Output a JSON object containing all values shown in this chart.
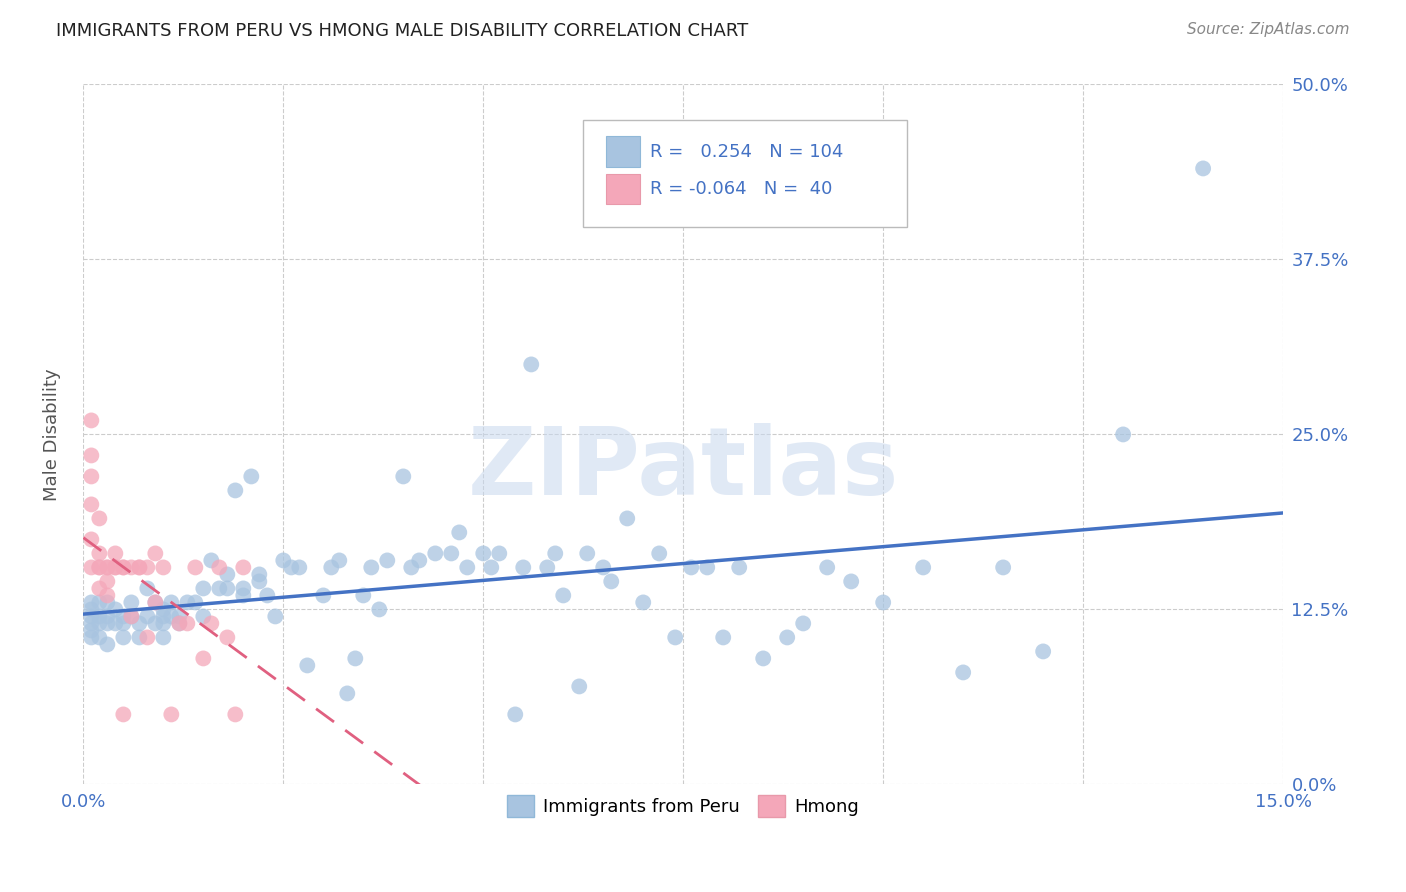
{
  "title": "IMMIGRANTS FROM PERU VS HMONG MALE DISABILITY CORRELATION CHART",
  "source": "Source: ZipAtlas.com",
  "xlim": [
    0.0,
    0.15
  ],
  "ylim": [
    0.0,
    0.5
  ],
  "ylabel": "Male Disability",
  "legend_labels": [
    "Immigrants from Peru",
    "Hmong"
  ],
  "peru_color": "#a8c4e0",
  "hmong_color": "#f4a7b9",
  "peru_line_color": "#4472c4",
  "hmong_line_color": "#e06080",
  "peru_R": 0.254,
  "peru_N": 104,
  "hmong_R": -0.064,
  "hmong_N": 40,
  "watermark": "ZIPatlas",
  "x_tick_positions": [
    0.0,
    0.025,
    0.05,
    0.075,
    0.1,
    0.125,
    0.15
  ],
  "x_tick_labels": [
    "0.0%",
    "",
    "",
    "",
    "",
    "",
    "15.0%"
  ],
  "y_ticks": [
    0.0,
    0.125,
    0.25,
    0.375,
    0.5
  ],
  "y_tick_labels": [
    "0.0%",
    "12.5%",
    "25.0%",
    "37.5%",
    "50.0%"
  ],
  "peru_x": [
    0.001,
    0.001,
    0.001,
    0.001,
    0.001,
    0.001,
    0.002,
    0.002,
    0.002,
    0.002,
    0.003,
    0.003,
    0.003,
    0.003,
    0.004,
    0.004,
    0.005,
    0.005,
    0.005,
    0.006,
    0.006,
    0.007,
    0.007,
    0.008,
    0.008,
    0.009,
    0.009,
    0.01,
    0.01,
    0.01,
    0.01,
    0.011,
    0.011,
    0.012,
    0.012,
    0.013,
    0.014,
    0.015,
    0.015,
    0.016,
    0.017,
    0.018,
    0.018,
    0.019,
    0.02,
    0.02,
    0.021,
    0.022,
    0.022,
    0.023,
    0.024,
    0.025,
    0.026,
    0.027,
    0.028,
    0.03,
    0.031,
    0.032,
    0.033,
    0.034,
    0.035,
    0.036,
    0.037,
    0.038,
    0.04,
    0.041,
    0.042,
    0.044,
    0.046,
    0.047,
    0.048,
    0.05,
    0.051,
    0.052,
    0.054,
    0.055,
    0.056,
    0.058,
    0.059,
    0.06,
    0.062,
    0.063,
    0.065,
    0.066,
    0.068,
    0.07,
    0.072,
    0.074,
    0.076,
    0.078,
    0.08,
    0.082,
    0.085,
    0.088,
    0.09,
    0.093,
    0.096,
    0.1,
    0.105,
    0.11,
    0.115,
    0.12,
    0.13,
    0.14
  ],
  "peru_y": [
    0.125,
    0.13,
    0.12,
    0.115,
    0.105,
    0.11,
    0.12,
    0.115,
    0.105,
    0.13,
    0.13,
    0.12,
    0.115,
    0.1,
    0.125,
    0.115,
    0.12,
    0.115,
    0.105,
    0.13,
    0.12,
    0.115,
    0.105,
    0.14,
    0.12,
    0.13,
    0.115,
    0.125,
    0.12,
    0.115,
    0.105,
    0.13,
    0.12,
    0.12,
    0.115,
    0.13,
    0.13,
    0.14,
    0.12,
    0.16,
    0.14,
    0.15,
    0.14,
    0.21,
    0.14,
    0.135,
    0.22,
    0.15,
    0.145,
    0.135,
    0.12,
    0.16,
    0.155,
    0.155,
    0.085,
    0.135,
    0.155,
    0.16,
    0.065,
    0.09,
    0.135,
    0.155,
    0.125,
    0.16,
    0.22,
    0.155,
    0.16,
    0.165,
    0.165,
    0.18,
    0.155,
    0.165,
    0.155,
    0.165,
    0.05,
    0.155,
    0.3,
    0.155,
    0.165,
    0.135,
    0.07,
    0.165,
    0.155,
    0.145,
    0.19,
    0.13,
    0.165,
    0.105,
    0.155,
    0.155,
    0.105,
    0.155,
    0.09,
    0.105,
    0.115,
    0.155,
    0.145,
    0.13,
    0.155,
    0.08,
    0.155,
    0.095,
    0.25,
    0.44
  ],
  "hmong_x": [
    0.001,
    0.001,
    0.001,
    0.001,
    0.001,
    0.001,
    0.002,
    0.002,
    0.002,
    0.002,
    0.002,
    0.003,
    0.003,
    0.003,
    0.003,
    0.004,
    0.004,
    0.004,
    0.005,
    0.005,
    0.005,
    0.006,
    0.006,
    0.007,
    0.007,
    0.008,
    0.008,
    0.009,
    0.009,
    0.01,
    0.011,
    0.012,
    0.013,
    0.014,
    0.015,
    0.016,
    0.017,
    0.018,
    0.019,
    0.02
  ],
  "hmong_y": [
    0.26,
    0.235,
    0.22,
    0.2,
    0.175,
    0.155,
    0.19,
    0.165,
    0.155,
    0.155,
    0.14,
    0.155,
    0.145,
    0.135,
    0.155,
    0.155,
    0.165,
    0.155,
    0.155,
    0.155,
    0.05,
    0.155,
    0.12,
    0.155,
    0.155,
    0.155,
    0.105,
    0.165,
    0.13,
    0.155,
    0.05,
    0.115,
    0.115,
    0.155,
    0.09,
    0.115,
    0.155,
    0.105,
    0.05,
    0.155
  ]
}
